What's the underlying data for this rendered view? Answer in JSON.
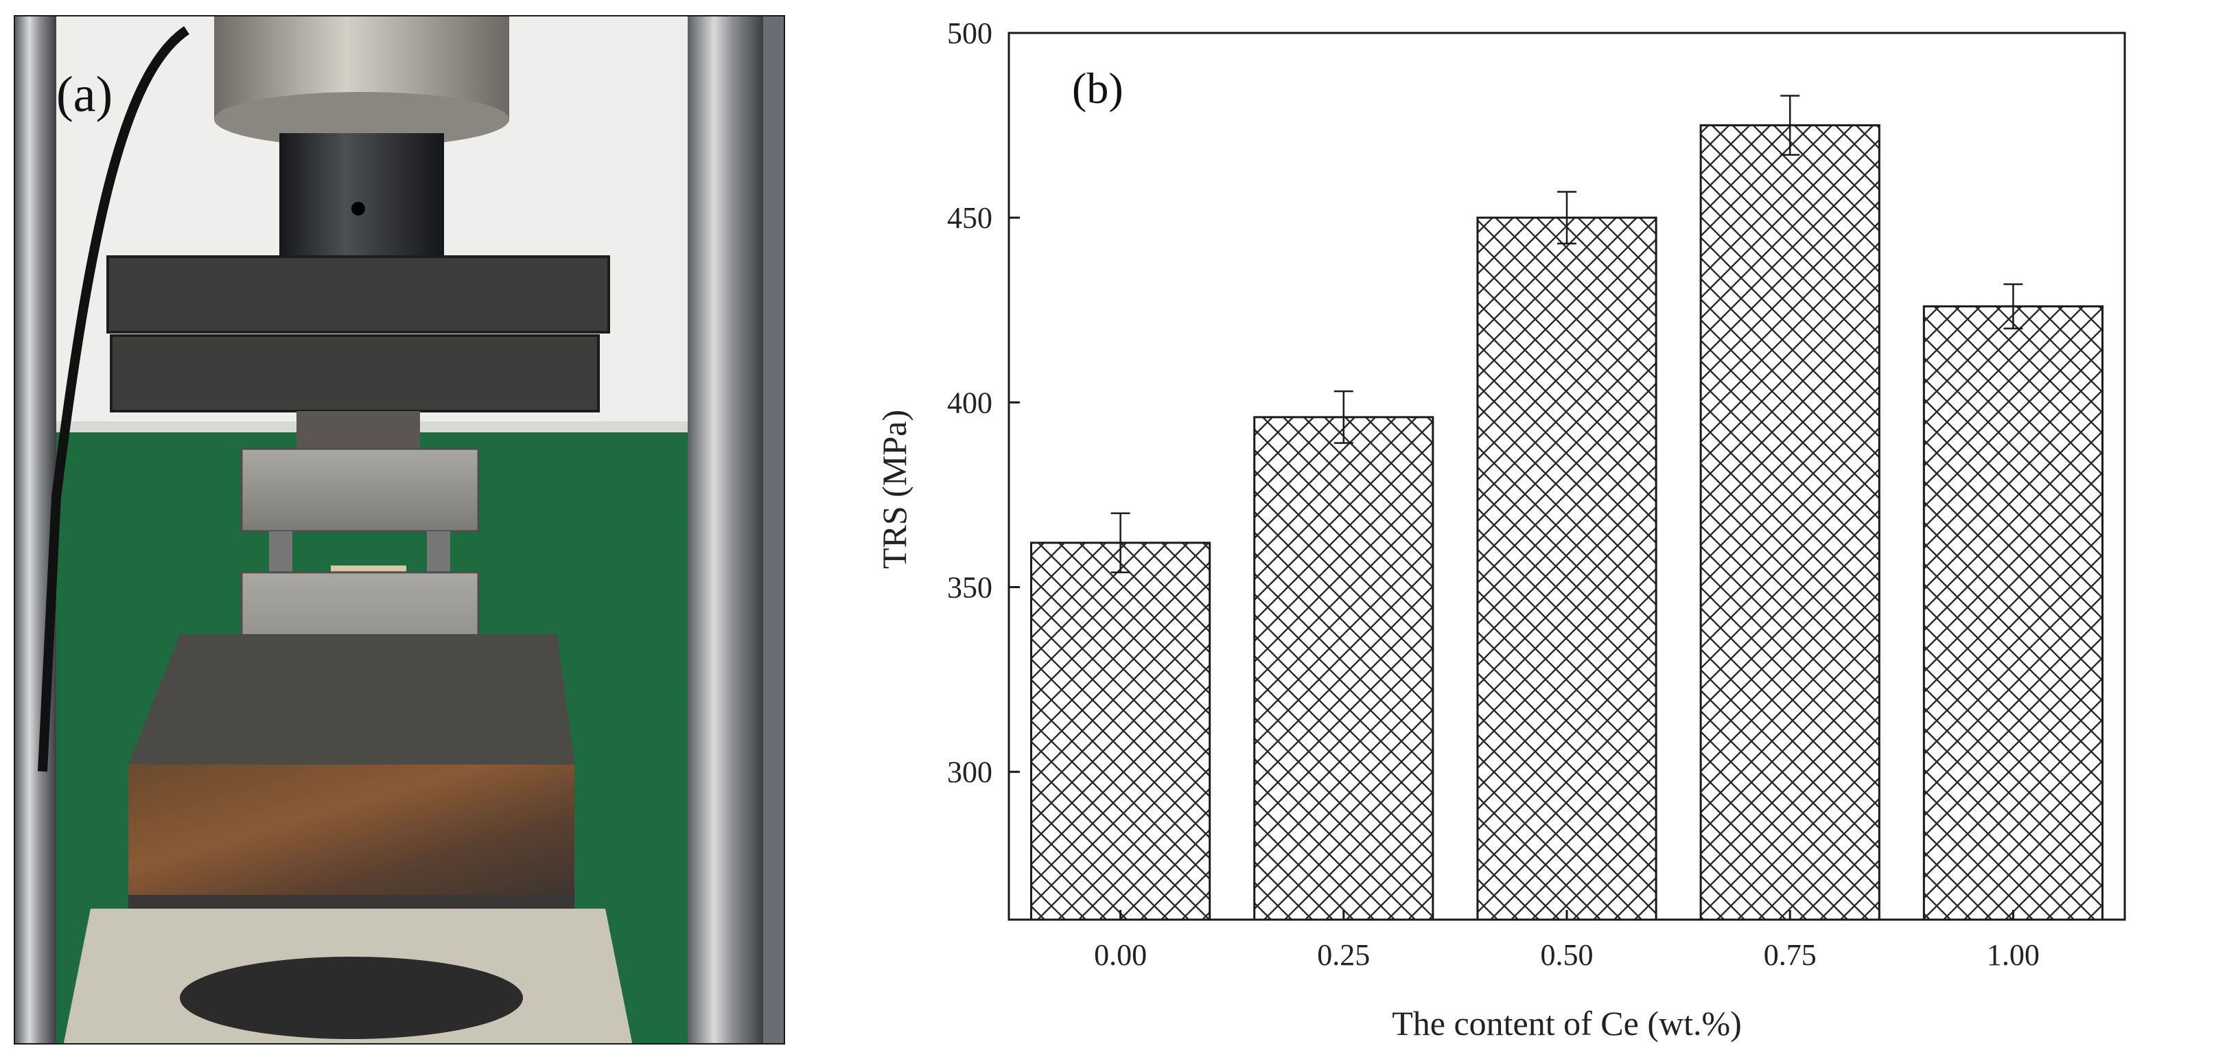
{
  "panels": {
    "a": {
      "label": "(a)"
    },
    "b": {
      "label": "(b)"
    }
  },
  "chart_data": {
    "type": "bar",
    "categories": [
      "0.00",
      "0.25",
      "0.50",
      "0.75",
      "1.00"
    ],
    "values": [
      362,
      396,
      450,
      475,
      426
    ],
    "errors": [
      8,
      7,
      7,
      8,
      6
    ],
    "xlabel": "The content of Ce (wt.%)",
    "ylabel": "TRS (MPa)",
    "ylim": [
      260,
      500
    ],
    "yticks": [
      300,
      350,
      400,
      450,
      500
    ],
    "grid": false,
    "bar_fill": "crosshatch",
    "colors": {
      "bar_stroke": "#1a1a1a",
      "hatch": "#2a2a2a",
      "background": "#ffffff"
    }
  }
}
